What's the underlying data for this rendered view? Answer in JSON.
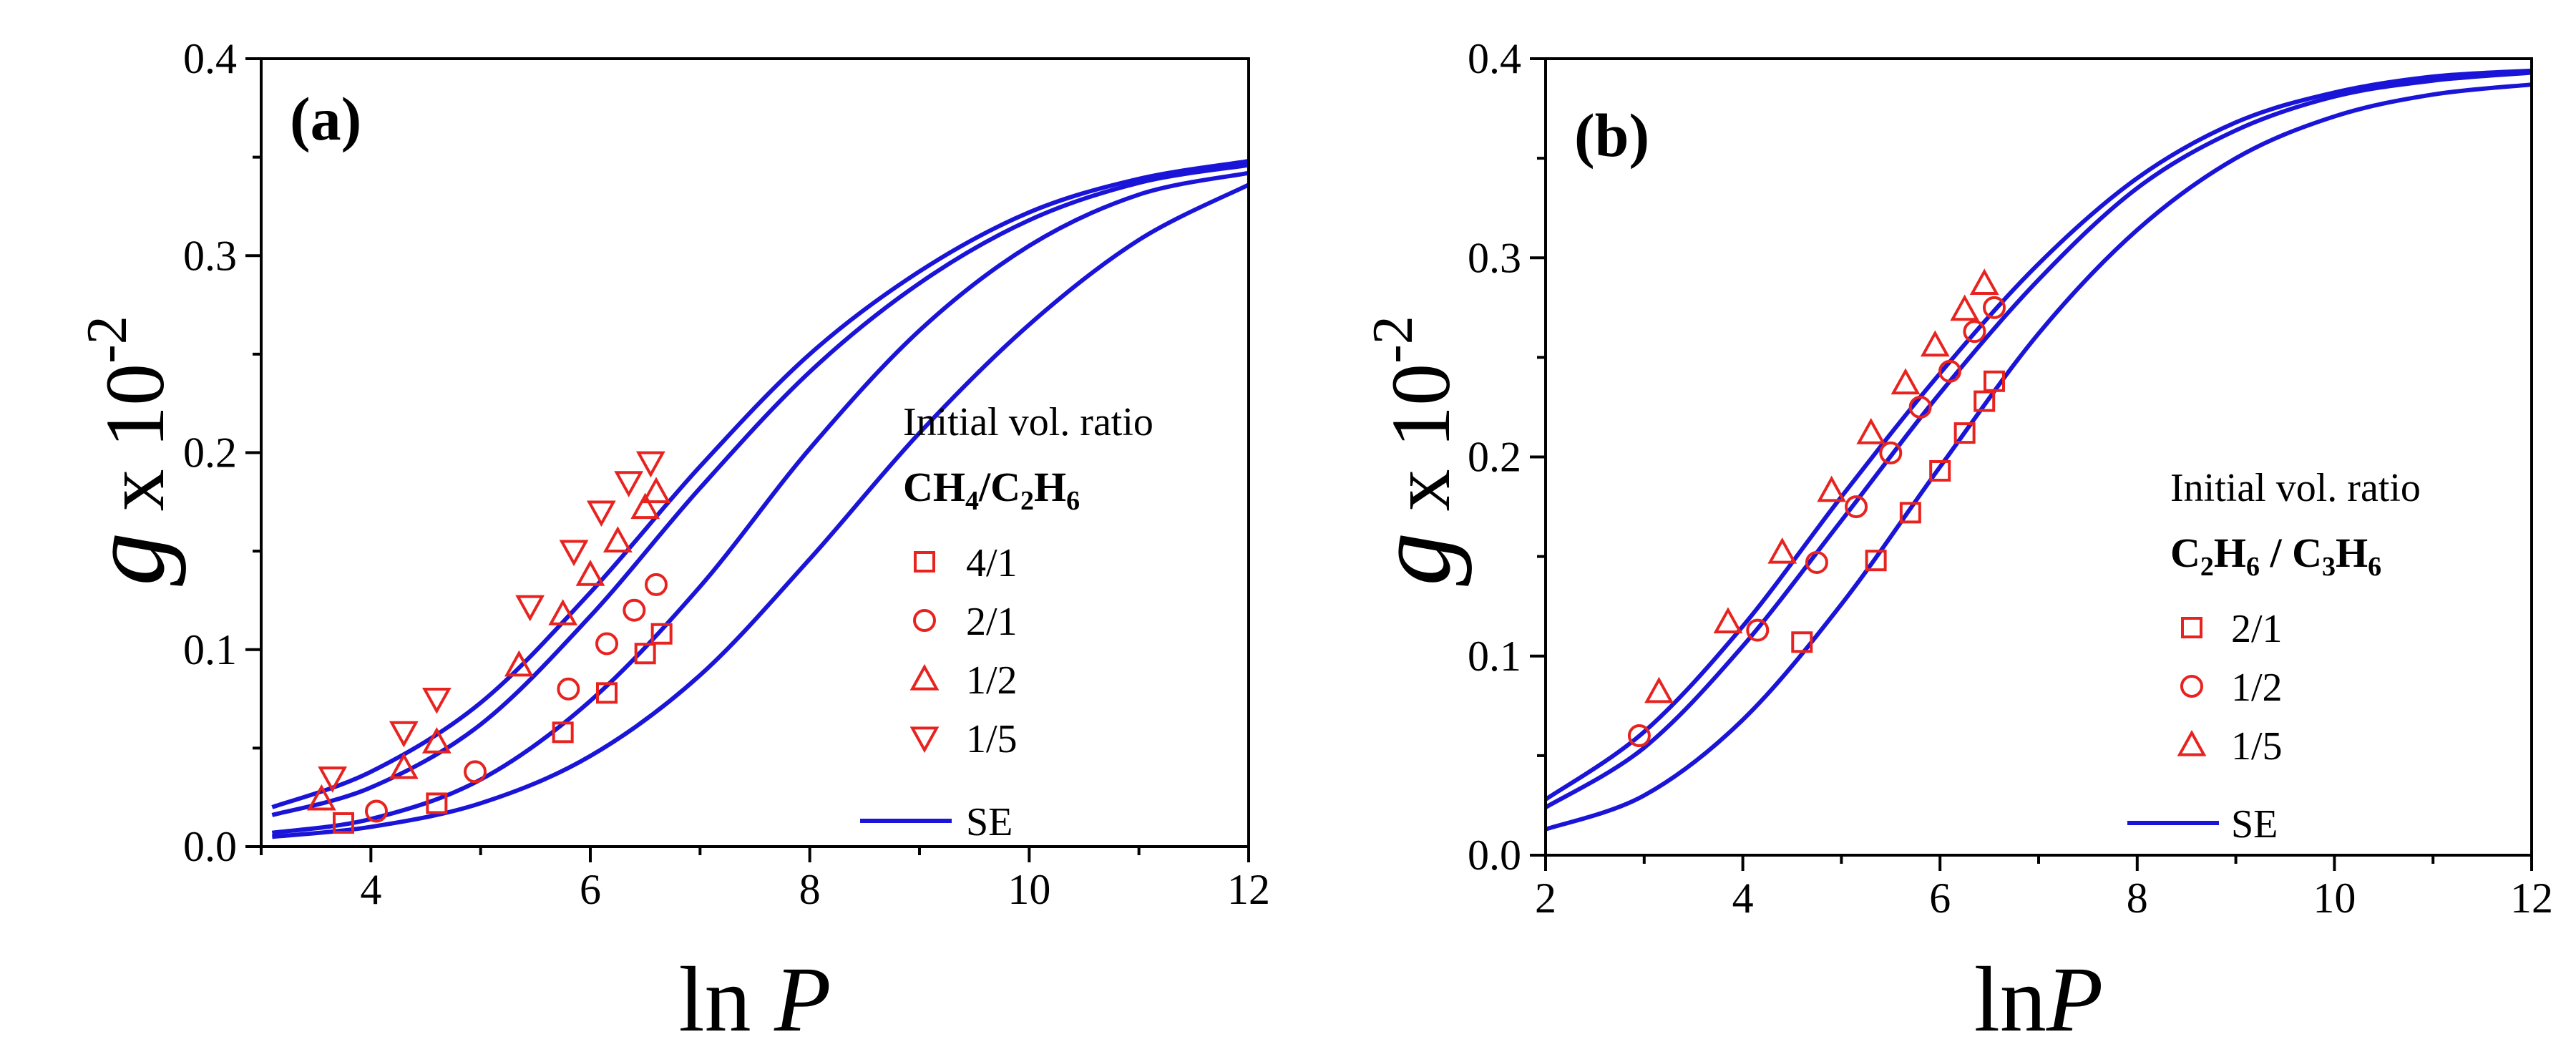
{
  "chart_data": [
    {
      "type": "scatter",
      "panel_label": "(a)",
      "xlabel": "ln P",
      "ylabel": "g x 10",
      "ylabel_exponent": "-2",
      "xlim": [
        3,
        12
      ],
      "ylim": [
        0,
        0.4
      ],
      "xticks": [
        4,
        6,
        8,
        10,
        12
      ],
      "xtick_labels": [
        "4",
        "6",
        "8",
        "10",
        "12"
      ],
      "yticks": [
        0,
        0.1,
        0.2,
        0.3,
        0.4
      ],
      "ytick_labels": [
        "0.0",
        "0.1",
        "0.2",
        "0.3",
        "0.4"
      ],
      "grid": false,
      "legend": {
        "placement": "center-right",
        "title_line1": "Initial vol. ratio",
        "title_line2": [
          {
            "t": "CH"
          },
          {
            "t": "4",
            "sub": true
          },
          {
            "t": "/C"
          },
          {
            "t": "2",
            "sub": true
          },
          {
            "t": "H"
          },
          {
            "t": "6",
            "sub": true
          }
        ],
        "fit_label": "SE"
      },
      "series": [
        {
          "name": "4/1",
          "marker": "square",
          "color": "#e8231f",
          "x": [
            3.75,
            4.6,
            5.75,
            6.15,
            6.5,
            6.65
          ],
          "y": [
            0.012,
            0.022,
            0.058,
            0.078,
            0.098,
            0.108
          ]
        },
        {
          "name": "2/1",
          "marker": "circle",
          "color": "#e8231f",
          "x": [
            4.05,
            4.95,
            5.8,
            6.15,
            6.4,
            6.6
          ],
          "y": [
            0.018,
            0.038,
            0.08,
            0.103,
            0.12,
            0.133
          ]
        },
        {
          "name": "1/2",
          "marker": "triangle-up",
          "color": "#e8231f",
          "x": [
            3.55,
            4.3,
            4.6,
            5.35,
            5.75,
            6.0,
            6.25,
            6.5,
            6.6
          ],
          "y": [
            0.024,
            0.04,
            0.053,
            0.092,
            0.118,
            0.138,
            0.155,
            0.172,
            0.18
          ]
        },
        {
          "name": "1/5",
          "marker": "triangle-down",
          "color": "#e8231f",
          "x": [
            3.65,
            4.3,
            4.6,
            5.45,
            5.85,
            6.1,
            6.35,
            6.55
          ],
          "y": [
            0.035,
            0.058,
            0.075,
            0.122,
            0.15,
            0.17,
            0.185,
            0.195
          ]
        }
      ],
      "fit_curves": [
        {
          "x": [
            3.1,
            4,
            5,
            6,
            7,
            8,
            9,
            10,
            11,
            12
          ],
          "y": [
            0.005,
            0.01,
            0.022,
            0.046,
            0.087,
            0.146,
            0.21,
            0.265,
            0.308,
            0.336
          ]
        },
        {
          "x": [
            3.1,
            4,
            5,
            6,
            7,
            8,
            9,
            10,
            11,
            12
          ],
          "y": [
            0.007,
            0.014,
            0.034,
            0.074,
            0.132,
            0.202,
            0.262,
            0.305,
            0.331,
            0.342
          ]
        },
        {
          "x": [
            3.1,
            4,
            5,
            6,
            7,
            8,
            9,
            10,
            11,
            12
          ],
          "y": [
            0.016,
            0.03,
            0.062,
            0.117,
            0.182,
            0.241,
            0.286,
            0.318,
            0.337,
            0.346
          ]
        },
        {
          "x": [
            3.1,
            4,
            5,
            6,
            7,
            8,
            9,
            10,
            11,
            12
          ],
          "y": [
            0.02,
            0.038,
            0.073,
            0.129,
            0.193,
            0.25,
            0.292,
            0.322,
            0.339,
            0.348
          ]
        }
      ]
    },
    {
      "type": "scatter",
      "panel_label": "(b)",
      "xlabel": "lnP",
      "ylabel": "g x 10",
      "ylabel_exponent": "-2",
      "xlim": [
        2,
        12
      ],
      "ylim": [
        0,
        0.4
      ],
      "xticks": [
        2,
        4,
        6,
        8,
        10,
        12
      ],
      "xtick_labels": [
        "2",
        "4",
        "6",
        "8",
        "10",
        "12"
      ],
      "yticks": [
        0,
        0.1,
        0.2,
        0.3,
        0.4
      ],
      "ytick_labels": [
        "0.0",
        "0.1",
        "0.2",
        "0.3",
        "0.4"
      ],
      "grid": false,
      "legend": {
        "placement": "center-right",
        "title_line1": "Initial vol. ratio",
        "title_line2": [
          {
            "t": "C"
          },
          {
            "t": "2",
            "sub": true
          },
          {
            "t": "H"
          },
          {
            "t": "6",
            "sub": true
          },
          {
            "t": " / C"
          },
          {
            "t": "3",
            "sub": true
          },
          {
            "t": "H"
          },
          {
            "t": "6",
            "sub": true
          }
        ],
        "fit_label": "SE"
      },
      "series": [
        {
          "name": "2/1",
          "marker": "square",
          "color": "#e8231f",
          "x": [
            4.6,
            5.35,
            5.7,
            6.0,
            6.25,
            6.45,
            6.55
          ],
          "y": [
            0.107,
            0.148,
            0.172,
            0.193,
            0.212,
            0.228,
            0.238
          ]
        },
        {
          "name": "1/2",
          "marker": "circle",
          "color": "#e8231f",
          "x": [
            2.95,
            4.15,
            4.75,
            5.15,
            5.5,
            5.8,
            6.1,
            6.35,
            6.55
          ],
          "y": [
            0.06,
            0.113,
            0.147,
            0.175,
            0.202,
            0.225,
            0.243,
            0.263,
            0.275
          ]
        },
        {
          "name": "1/5",
          "marker": "triangle-up",
          "color": "#e8231f",
          "x": [
            3.15,
            3.85,
            4.4,
            4.9,
            5.3,
            5.65,
            5.95,
            6.25,
            6.45
          ],
          "y": [
            0.082,
            0.117,
            0.152,
            0.183,
            0.212,
            0.237,
            0.256,
            0.274,
            0.287
          ]
        }
      ],
      "fit_curves": [
        {
          "x": [
            2,
            3,
            4,
            5,
            6,
            7,
            8,
            9,
            10,
            11,
            12
          ],
          "y": [
            0.013,
            0.03,
            0.068,
            0.126,
            0.195,
            0.262,
            0.314,
            0.35,
            0.371,
            0.382,
            0.387
          ]
        },
        {
          "x": [
            2,
            3,
            4,
            5,
            6,
            7,
            8,
            9,
            10,
            11,
            12
          ],
          "y": [
            0.024,
            0.054,
            0.105,
            0.168,
            0.232,
            0.289,
            0.335,
            0.364,
            0.381,
            0.389,
            0.393
          ]
        },
        {
          "x": [
            2,
            3,
            4,
            5,
            6,
            7,
            8,
            9,
            10,
            11,
            12
          ],
          "y": [
            0.028,
            0.062,
            0.115,
            0.18,
            0.242,
            0.297,
            0.34,
            0.368,
            0.383,
            0.391,
            0.394
          ]
        }
      ]
    }
  ]
}
